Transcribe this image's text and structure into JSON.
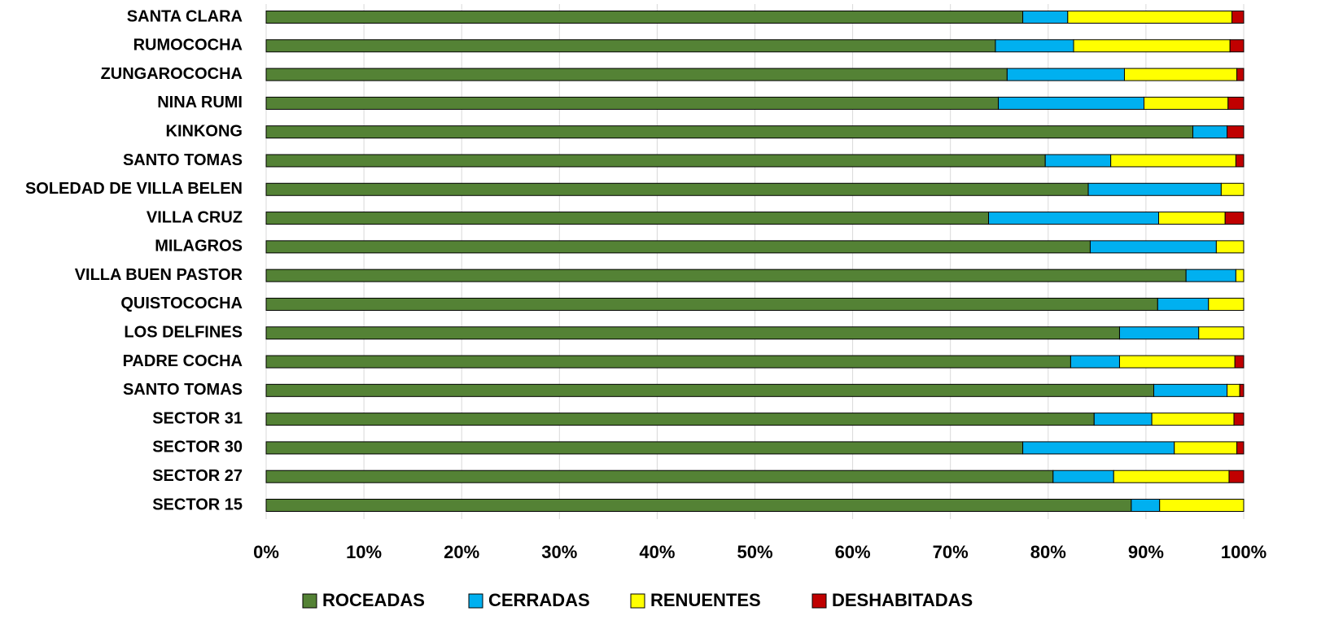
{
  "chart_data": {
    "type": "stacked_bar_horizontal",
    "categories": [
      "SANTA CLARA",
      "RUMOCOCHA",
      "ZUNGAROCOCHA",
      "NINA RUMI",
      "KINKONG",
      "SANTO TOMAS",
      "SOLEDAD DE VILLA BELEN",
      "VILLA CRUZ",
      "MILAGROS",
      "VILLA BUEN PASTOR",
      "QUISTOCOCHA",
      "LOS DELFINES",
      "PADRE COCHA",
      "SANTO TOMAS",
      "SECTOR 31",
      "SECTOR 30",
      "SECTOR 27",
      "SECTOR 15"
    ],
    "series": [
      {
        "name": "ROCEADAS",
        "color": "#548235",
        "values": [
          77.4,
          74.6,
          75.8,
          74.9,
          94.8,
          79.7,
          84.1,
          73.9,
          84.3,
          94.1,
          91.2,
          87.3,
          82.3,
          90.8,
          84.7,
          77.4,
          80.5,
          88.5
        ]
      },
      {
        "name": "CERRADAS",
        "color": "#00b0f0",
        "values": [
          4.6,
          8.0,
          12.0,
          14.9,
          3.5,
          6.7,
          13.6,
          17.4,
          12.9,
          5.1,
          5.2,
          8.1,
          5.0,
          7.5,
          5.9,
          15.5,
          6.2,
          2.9
        ]
      },
      {
        "name": "RENUENTES",
        "color": "#ffff00",
        "values": [
          16.8,
          16.0,
          11.5,
          8.6,
          0,
          12.8,
          2.3,
          6.8,
          2.8,
          0.8,
          3.6,
          4.6,
          11.8,
          1.3,
          8.4,
          6.4,
          11.8,
          8.6
        ]
      },
      {
        "name": "DESHABITADAS",
        "color": "#c00000",
        "values": [
          1.2,
          1.4,
          0.7,
          1.6,
          1.7,
          0.8,
          0,
          1.9,
          0,
          0,
          0,
          0,
          0.9,
          0.4,
          1.0,
          0.7,
          1.5,
          0
        ]
      }
    ],
    "xlim": [
      0,
      100
    ],
    "xticks": [
      {
        "value": 0,
        "label": "0%"
      },
      {
        "value": 10,
        "label": "10%"
      },
      {
        "value": 20,
        "label": "20%"
      },
      {
        "value": 30,
        "label": "30%"
      },
      {
        "value": 40,
        "label": "40%"
      },
      {
        "value": 50,
        "label": "50%"
      },
      {
        "value": 60,
        "label": "60%"
      },
      {
        "value": 70,
        "label": "70%"
      },
      {
        "value": 80,
        "label": "80%"
      },
      {
        "value": 90,
        "label": "90%"
      },
      {
        "value": 100,
        "label": "100%"
      }
    ],
    "grid": true,
    "legend": "bottom"
  }
}
